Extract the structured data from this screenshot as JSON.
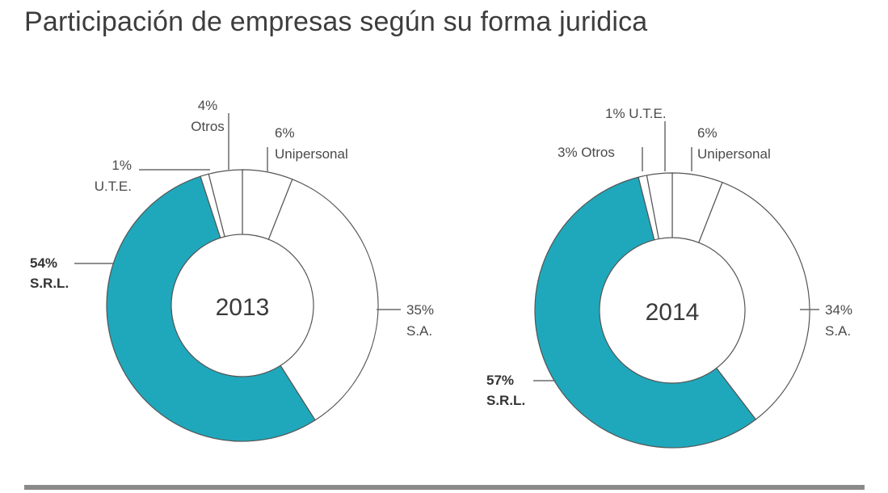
{
  "title": "Participación de empresas según su forma juridica",
  "chart_data": [
    {
      "type": "pie",
      "center_label": "2013",
      "slices": [
        {
          "name": "S.R.L.",
          "value": 54,
          "pct_label": "54%",
          "name_label": "S.R.L.",
          "bold": true
        },
        {
          "name": "S.A.",
          "value": 35,
          "pct_label": "35%",
          "name_label": "S.A.",
          "bold": false
        },
        {
          "name": "Unipersonal",
          "value": 6,
          "pct_label": "6%",
          "name_label": "Unipersonal",
          "bold": false
        },
        {
          "name": "Otros",
          "value": 4,
          "pct_label": "4%",
          "name_label": "Otros",
          "bold": false
        },
        {
          "name": "U.T.E.",
          "value": 1,
          "pct_label": "1%",
          "name_label": "U.T.E.",
          "bold": false
        }
      ]
    },
    {
      "type": "pie",
      "center_label": "2014",
      "slices": [
        {
          "name": "S.R.L.",
          "value": 57,
          "pct_label": "57%",
          "name_label": "S.R.L.",
          "bold": true
        },
        {
          "name": "S.A.",
          "value": 34,
          "pct_label": "34%",
          "name_label": "S.A.",
          "bold": false
        },
        {
          "name": "Unipersonal",
          "value": 6,
          "pct_label": "6%",
          "name_label": "Unipersonal",
          "bold": false
        },
        {
          "name": "Otros",
          "value": 3,
          "pct_label": "3% Otros",
          "name_label": "",
          "bold": false
        },
        {
          "name": "U.T.E.",
          "value": 1,
          "pct_label": "1% U.T.E.",
          "name_label": "",
          "bold": false
        }
      ]
    }
  ],
  "colors": {
    "highlight": "#1fa8bb",
    "other": "#ffffff",
    "stroke": "#555555",
    "rule": "#8a8a8a"
  }
}
